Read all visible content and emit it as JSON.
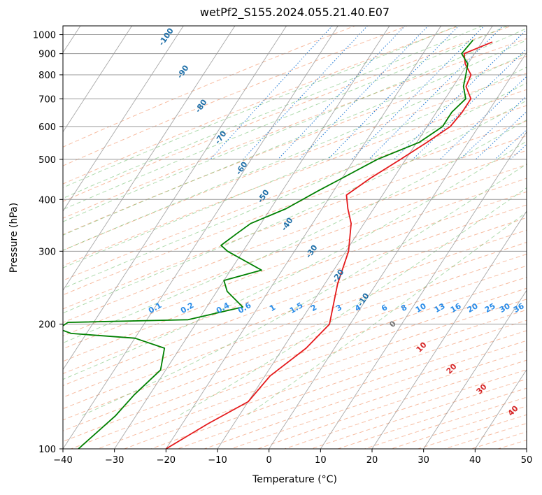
{
  "chart_data": {
    "type": "line",
    "title": "wetPf2_S155.2024.055.21.40.E07",
    "xlabel": "Temperature (°C)",
    "ylabel": "Pressure (hPa)",
    "xlim": [
      -40,
      50
    ],
    "ylim": [
      1050,
      100
    ],
    "y_scale": "log",
    "skew": true,
    "grid": true,
    "x_ticks": [
      -40,
      -30,
      -20,
      -10,
      0,
      10,
      20,
      30,
      40,
      50
    ],
    "y_ticks": [
      1000,
      900,
      800,
      700,
      600,
      500,
      400,
      300,
      200,
      100
    ],
    "series": [
      {
        "color": "#e41a1c",
        "points": [
          [
            960,
            -8.0
          ],
          [
            900,
            -12.0
          ],
          [
            850,
            -10.5
          ],
          [
            800,
            -8.0
          ],
          [
            750,
            -7.5
          ],
          [
            700,
            -5.0
          ],
          [
            650,
            -5.0
          ],
          [
            600,
            -5.5
          ],
          [
            550,
            -8.0
          ],
          [
            500,
            -11.0
          ],
          [
            450,
            -14.5
          ],
          [
            410,
            -17.0
          ],
          [
            380,
            -15.0
          ],
          [
            350,
            -12.5
          ],
          [
            300,
            -9.5
          ],
          [
            250,
            -7.5
          ],
          [
            200,
            -4.0
          ],
          [
            175,
            -5.5
          ],
          [
            150,
            -9.0
          ],
          [
            130,
            -10.0
          ],
          [
            115,
            -15.0
          ],
          [
            100,
            -20.0
          ]
        ]
      },
      {
        "color": "#008000",
        "points": [
          [
            970,
            -12.0
          ],
          [
            900,
            -12.5
          ],
          [
            850,
            -10.0
          ],
          [
            800,
            -9.0
          ],
          [
            750,
            -8.0
          ],
          [
            700,
            -6.0
          ],
          [
            650,
            -7.0
          ],
          [
            600,
            -7.0
          ],
          [
            550,
            -9.5
          ],
          [
            500,
            -15.5
          ],
          [
            450,
            -20.0
          ],
          [
            420,
            -23.0
          ],
          [
            380,
            -27.0
          ],
          [
            350,
            -32.0
          ],
          [
            330,
            -33.5
          ],
          [
            310,
            -35.0
          ],
          [
            300,
            -33.0
          ],
          [
            270,
            -24.0
          ],
          [
            255,
            -30.0
          ],
          [
            240,
            -28.0
          ],
          [
            220,
            -23.0
          ],
          [
            205,
            -32.0
          ],
          [
            202,
            -55.0
          ],
          [
            195,
            -56.0
          ],
          [
            190,
            -53.0
          ],
          [
            185,
            -40.0
          ],
          [
            175,
            -33.0
          ],
          [
            155,
            -31.0
          ],
          [
            135,
            -33.0
          ],
          [
            120,
            -34.0
          ],
          [
            100,
            -37.0
          ]
        ]
      }
    ],
    "dry_adiabat_labels": [
      "-100",
      "-90",
      "-80",
      "-70",
      "-60",
      "-50",
      "-40",
      "-30",
      "-20",
      "-10"
    ],
    "mixing_ratio_labels": [
      "0.1",
      "0.2",
      "0.4",
      "0.6",
      "1",
      "1.5",
      "2",
      "3",
      "4",
      "6",
      "8",
      "10",
      "13",
      "16",
      "20",
      "25",
      "30",
      "36"
    ],
    "moist_adiabat_labels": [
      "0",
      "10",
      "20",
      "30",
      "40"
    ],
    "colors": {
      "temperature": "#e41a1c",
      "dewpoint": "#008000",
      "dry_adiabat": "#f4a582",
      "moist_adiabat": "#4daf4a",
      "mixing_ratio": "#1f78d4",
      "isotherm": "#999999",
      "isobar": "#999999",
      "dry_label": "#1f6fa8",
      "mix_label": "#2a8ce8",
      "moist_label": "#d62728"
    }
  }
}
